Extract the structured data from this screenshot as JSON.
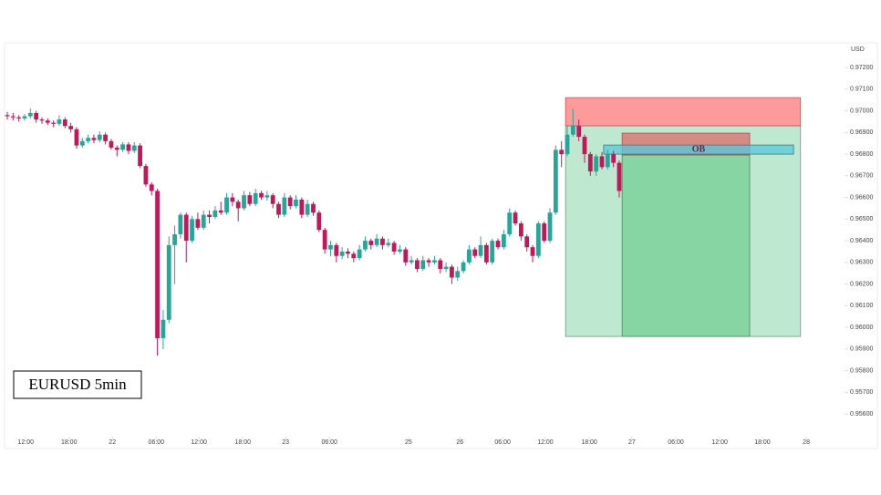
{
  "chart_data": {
    "type": "candlestick",
    "annotation": "EURUSD 5min",
    "y_axis_label": "USD",
    "up_color": "#26a69a",
    "down_color": "#c2185b",
    "xlim": [
      -0.5,
      144.4
    ],
    "xticks": [
      {
        "value": 3.2,
        "label": "12:00"
      },
      {
        "value": 10.7,
        "label": "18:00"
      },
      {
        "value": 18.2,
        "label": "22"
      },
      {
        "value": 25.8,
        "label": "06:00"
      },
      {
        "value": 33.2,
        "label": "12:00"
      },
      {
        "value": 40.8,
        "label": "18:00"
      },
      {
        "value": 48.2,
        "label": "23"
      },
      {
        "value": 55.8,
        "label": "06:00"
      },
      {
        "value": 69.5,
        "label": "25"
      },
      {
        "value": 78.4,
        "label": "26"
      },
      {
        "value": 85.8,
        "label": "06:00"
      },
      {
        "value": 93.2,
        "label": "12:00"
      },
      {
        "value": 100.8,
        "label": "18:00"
      },
      {
        "value": 108.2,
        "label": "27"
      },
      {
        "value": 115.8,
        "label": "06:00"
      },
      {
        "value": 123.4,
        "label": "12:00"
      },
      {
        "value": 130.8,
        "label": "18:00"
      },
      {
        "value": 138.4,
        "label": "28"
      }
    ],
    "ylim": [
      0.95512,
      0.97314
    ],
    "yticks": [
      {
        "value": 0.972,
        "label": "0.97200"
      },
      {
        "value": 0.971,
        "label": "0.97100"
      },
      {
        "value": 0.97,
        "label": "0.97000"
      },
      {
        "value": 0.969,
        "label": "0.96900"
      },
      {
        "value": 0.968,
        "label": "0.96800"
      },
      {
        "value": 0.967,
        "label": "0.96700"
      },
      {
        "value": 0.966,
        "label": "0.96600"
      },
      {
        "value": 0.965,
        "label": "0.96500"
      },
      {
        "value": 0.964,
        "label": "0.96400"
      },
      {
        "value": 0.963,
        "label": "0.96300"
      },
      {
        "value": 0.962,
        "label": "0.96200"
      },
      {
        "value": 0.961,
        "label": "0.96100"
      },
      {
        "value": 0.96,
        "label": "0.96000"
      },
      {
        "value": 0.959,
        "label": "0.95900"
      },
      {
        "value": 0.958,
        "label": "0.95800"
      },
      {
        "value": 0.957,
        "label": "0.95700"
      },
      {
        "value": 0.956,
        "label": "0.95600"
      }
    ],
    "open": [
      0.9698,
      0.96975,
      0.9697,
      0.96965,
      0.96975,
      0.9699,
      0.9696,
      0.96955,
      0.96945,
      0.9694,
      0.9696,
      0.9693,
      0.96915,
      0.9684,
      0.9686,
      0.96875,
      0.96865,
      0.9689,
      0.9686,
      0.9683,
      0.9682,
      0.96845,
      0.96815,
      0.9684,
      0.96745,
      0.9666,
      0.9663,
      0.9595,
      0.96035,
      0.9638,
      0.9643,
      0.9652,
      0.964,
      0.965,
      0.9646,
      0.9652,
      0.9651,
      0.9654,
      0.9653,
      0.966,
      0.9658,
      0.9655,
      0.9661,
      0.9657,
      0.9662,
      0.966,
      0.9661,
      0.9657,
      0.9652,
      0.966,
      0.9656,
      0.9659,
      0.9652,
      0.9657,
      0.9653,
      0.9645,
      0.9636,
      0.9638,
      0.9633,
      0.9635,
      0.9634,
      0.9632,
      0.9636,
      0.964,
      0.9638,
      0.9641,
      0.9638,
      0.9639,
      0.9635,
      0.9636,
      0.963,
      0.9631,
      0.9627,
      0.9631,
      0.963,
      0.9631,
      0.9627,
      0.9628,
      0.9623,
      0.9626,
      0.963,
      0.9636,
      0.9633,
      0.9638,
      0.963,
      0.964,
      0.9637,
      0.9643,
      0.9653,
      0.9648,
      0.9642,
      0.9637,
      0.9633,
      0.9648,
      0.964,
      0.9653,
      0.9682,
      0.968,
      0.9689,
      0.9693,
      0.9688,
      0.968,
      0.9672,
      0.9679,
      0.9674,
      0.968,
      0.9676
    ],
    "high": [
      0.96995,
      0.9699,
      0.9698,
      0.96985,
      0.9701,
      0.97,
      0.9697,
      0.96965,
      0.96955,
      0.9698,
      0.9697,
      0.96945,
      0.96925,
      0.96875,
      0.9689,
      0.9689,
      0.96905,
      0.969,
      0.9687,
      0.9684,
      0.96855,
      0.96855,
      0.96855,
      0.9685,
      0.96755,
      0.9667,
      0.9664,
      0.9608,
      0.9642,
      0.9647,
      0.9653,
      0.9653,
      0.96515,
      0.9653,
      0.9654,
      0.9654,
      0.9656,
      0.9658,
      0.9662,
      0.9662,
      0.9659,
      0.9663,
      0.96625,
      0.9664,
      0.9663,
      0.9663,
      0.9662,
      0.9658,
      0.9662,
      0.9661,
      0.9661,
      0.966,
      0.9659,
      0.9658,
      0.9654,
      0.9646,
      0.964,
      0.9639,
      0.9637,
      0.96365,
      0.9635,
      0.9638,
      0.9642,
      0.9641,
      0.9643,
      0.9642,
      0.9641,
      0.964,
      0.9638,
      0.9637,
      0.9633,
      0.9632,
      0.9633,
      0.9632,
      0.9633,
      0.9632,
      0.963,
      0.9629,
      0.9628,
      0.9631,
      0.9638,
      0.9637,
      0.9642,
      0.9639,
      0.9641,
      0.9641,
      0.9645,
      0.9655,
      0.9654,
      0.9649,
      0.9643,
      0.9638,
      0.9649,
      0.9649,
      0.9655,
      0.9684,
      0.9686,
      0.9693,
      0.9701,
      0.9696,
      0.9689,
      0.9681,
      0.968,
      0.9681,
      0.9682,
      0.96815,
      0.9677
    ],
    "low": [
      0.9696,
      0.96955,
      0.9695,
      0.96955,
      0.96965,
      0.96945,
      0.9694,
      0.96935,
      0.96925,
      0.9693,
      0.9692,
      0.969,
      0.96825,
      0.9683,
      0.9685,
      0.9685,
      0.96855,
      0.96845,
      0.9682,
      0.9679,
      0.9681,
      0.968,
      0.96805,
      0.96735,
      0.9665,
      0.9661,
      0.9587,
      0.959,
      0.9602,
      0.962,
      0.9641,
      0.963,
      0.9639,
      0.9645,
      0.9645,
      0.9648,
      0.965,
      0.9652,
      0.9652,
      0.9656,
      0.9649,
      0.9654,
      0.9656,
      0.9656,
      0.9659,
      0.96585,
      0.9655,
      0.96505,
      0.9651,
      0.96545,
      0.9655,
      0.96505,
      0.9651,
      0.96515,
      0.9644,
      0.9634,
      0.9633,
      0.963,
      0.96315,
      0.9632,
      0.963,
      0.9631,
      0.9635,
      0.9636,
      0.9637,
      0.9636,
      0.9637,
      0.96335,
      0.9634,
      0.96285,
      0.9629,
      0.96255,
      0.9626,
      0.9628,
      0.9629,
      0.9625,
      0.96255,
      0.962,
      0.96215,
      0.9625,
      0.9629,
      0.9632,
      0.9632,
      0.9629,
      0.9629,
      0.9636,
      0.9636,
      0.9642,
      0.9647,
      0.964,
      0.9635,
      0.963,
      0.9632,
      0.9639,
      0.9639,
      0.9652,
      0.9674,
      0.9679,
      0.9688,
      0.9686,
      0.9676,
      0.967,
      0.967,
      0.9673,
      0.9673,
      0.9674,
      0.966
    ],
    "close": [
      0.96975,
      0.9697,
      0.96965,
      0.96975,
      0.9699,
      0.9696,
      0.96955,
      0.96945,
      0.9694,
      0.9696,
      0.9693,
      0.96915,
      0.9684,
      0.9686,
      0.96875,
      0.96865,
      0.9689,
      0.9686,
      0.9683,
      0.9682,
      0.96845,
      0.96815,
      0.9684,
      0.96745,
      0.9666,
      0.9663,
      0.9595,
      0.96035,
      0.9638,
      0.9643,
      0.9652,
      0.964,
      0.965,
      0.9646,
      0.9652,
      0.9651,
      0.9654,
      0.9653,
      0.966,
      0.9658,
      0.9655,
      0.9661,
      0.9657,
      0.9662,
      0.966,
      0.9661,
      0.9657,
      0.9652,
      0.966,
      0.9656,
      0.9659,
      0.9652,
      0.9657,
      0.9653,
      0.9645,
      0.9636,
      0.9638,
      0.9633,
      0.9635,
      0.9634,
      0.9632,
      0.9636,
      0.964,
      0.9638,
      0.9641,
      0.9638,
      0.9639,
      0.9635,
      0.9636,
      0.963,
      0.9631,
      0.9627,
      0.9631,
      0.963,
      0.9631,
      0.9627,
      0.9628,
      0.9623,
      0.9626,
      0.963,
      0.9636,
      0.9633,
      0.9638,
      0.963,
      0.964,
      0.9637,
      0.9643,
      0.9653,
      0.9648,
      0.9642,
      0.9637,
      0.9633,
      0.9648,
      0.964,
      0.9653,
      0.9682,
      0.968,
      0.9689,
      0.9693,
      0.9688,
      0.968,
      0.9672,
      0.9679,
      0.9674,
      0.968,
      0.9676,
      0.9663
    ],
    "zones": [
      {
        "x": [
          96.7,
          137.4
        ],
        "y": [
          0.95958,
          0.96931
        ],
        "color": "rgba(100,200,140,0.42)",
        "border": "#6c9c80"
      },
      {
        "x": [
          96.7,
          137.4
        ],
        "y": [
          0.96931,
          0.97061
        ],
        "color": "rgba(255,100,100,0.65)",
        "border": "#d05050"
      },
      {
        "x": [
          106.5,
          128.6
        ],
        "y": [
          0.95958,
          0.96796
        ],
        "color": "rgba(70,190,110,0.45)",
        "border": "#4a8a60"
      },
      {
        "x": [
          106.5,
          128.6
        ],
        "y": [
          0.96796,
          0.96897
        ],
        "color": "rgba(220,100,100,0.7)",
        "border": "#b05050"
      },
      {
        "x": [
          103.3,
          136.2
        ],
        "y": [
          0.968,
          0.96842
        ],
        "color": "rgba(90,200,220,0.75)",
        "border": "#3a7a8a",
        "label": "OB"
      }
    ]
  }
}
